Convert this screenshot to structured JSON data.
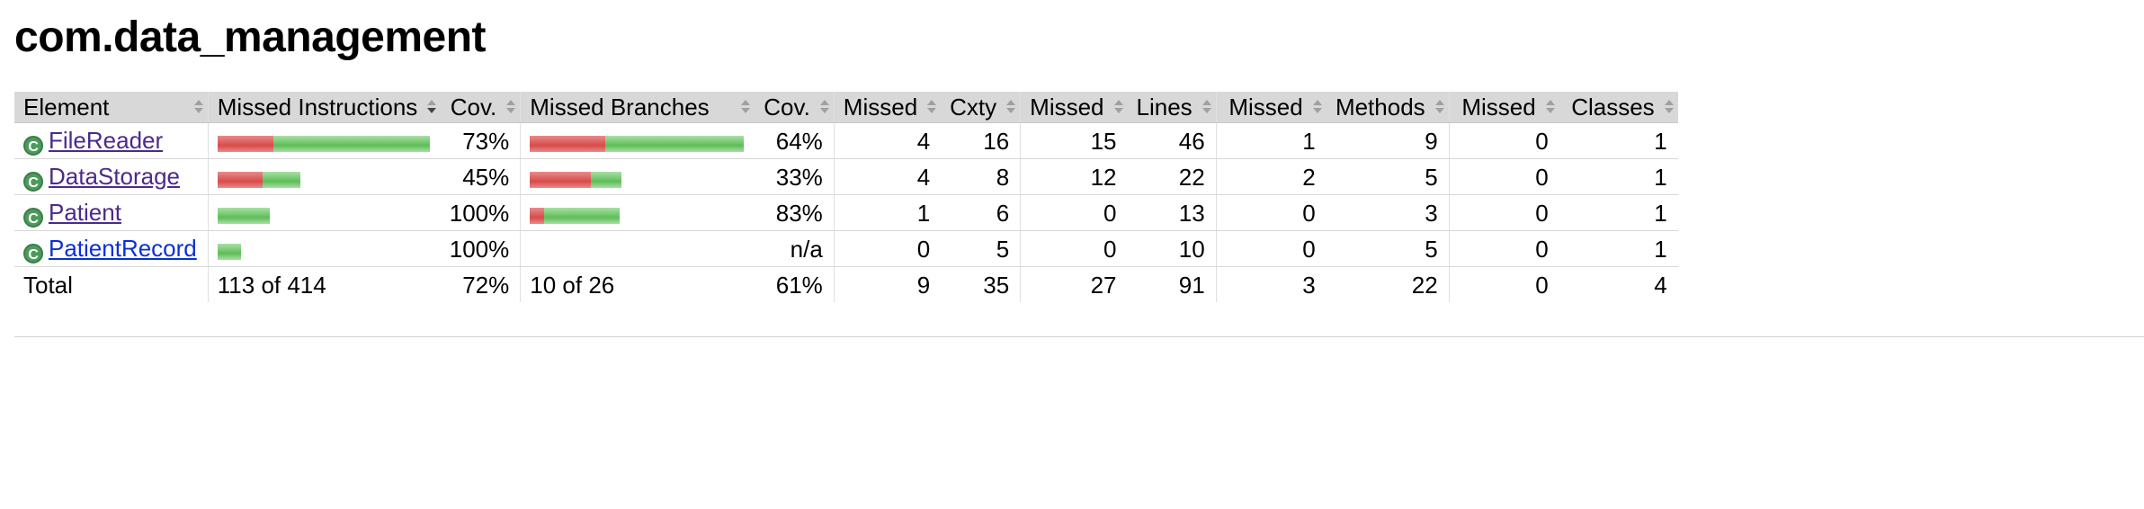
{
  "page_title": "com.data_management",
  "headers": {
    "element": "Element",
    "missed_instructions": "Missed Instructions",
    "cov_instructions": "Cov.",
    "missed_branches": "Missed Branches",
    "cov_branches": "Cov.",
    "missed_cxty": "Missed",
    "cxty": "Cxty",
    "missed_lines": "Missed",
    "lines": "Lines",
    "missed_methods": "Missed",
    "methods": "Methods",
    "missed_classes": "Missed",
    "classes": "Classes"
  },
  "rows": [
    {
      "name": "FileReader",
      "icon": "class-icon",
      "instr_bar": {
        "missed": 62,
        "covered": 174
      },
      "instr_cov": "73%",
      "branch_bar": {
        "missed": 84,
        "covered": 154
      },
      "branch_cov": "64%",
      "missed_cxty": "4",
      "cxty": "16",
      "missed_lines": "15",
      "lines": "46",
      "missed_methods": "1",
      "methods": "9",
      "missed_classes": "0",
      "classes": "1"
    },
    {
      "name": "DataStorage",
      "icon": "class-icon",
      "instr_bar": {
        "missed": 50,
        "covered": 42
      },
      "instr_cov": "45%",
      "branch_bar": {
        "missed": 68,
        "covered": 34
      },
      "branch_cov": "33%",
      "missed_cxty": "4",
      "cxty": "8",
      "missed_lines": "12",
      "lines": "22",
      "missed_methods": "2",
      "methods": "5",
      "missed_classes": "0",
      "classes": "1"
    },
    {
      "name": "Patient",
      "icon": "class-icon",
      "instr_bar": {
        "missed": 0,
        "covered": 58
      },
      "instr_cov": "100%",
      "branch_bar": {
        "missed": 16,
        "covered": 84
      },
      "branch_cov": "83%",
      "missed_cxty": "1",
      "cxty": "6",
      "missed_lines": "0",
      "lines": "13",
      "missed_methods": "0",
      "methods": "3",
      "missed_classes": "0",
      "classes": "1"
    },
    {
      "name": "PatientRecord",
      "icon": "class-icon",
      "instr_bar": {
        "missed": 0,
        "covered": 26
      },
      "instr_cov": "100%",
      "branch_bar": null,
      "branch_cov": "n/a",
      "missed_cxty": "0",
      "cxty": "5",
      "missed_lines": "0",
      "lines": "10",
      "missed_methods": "0",
      "methods": "5",
      "missed_classes": "0",
      "classes": "1"
    }
  ],
  "total": {
    "label": "Total",
    "instr": "113 of 414",
    "instr_cov": "72%",
    "branches": "10 of 26",
    "branch_cov": "61%",
    "missed_cxty": "9",
    "cxty": "35",
    "missed_lines": "27",
    "lines": "91",
    "missed_methods": "3",
    "methods": "22",
    "missed_classes": "0",
    "classes": "4"
  },
  "colors": {
    "bar_missed": "#d84b4b",
    "bar_covered": "#5ebd58",
    "header_bg": "#d8d8d8"
  }
}
